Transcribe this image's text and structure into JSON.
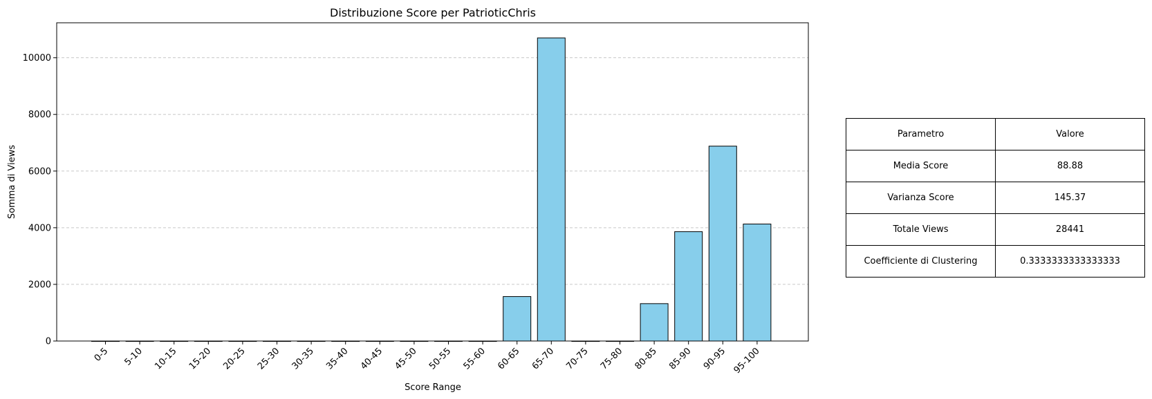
{
  "chart_data": {
    "type": "bar",
    "title": "Distribuzione Score per PatrioticChris",
    "xlabel": "Score Range",
    "ylabel": "Somma di Views",
    "categories": [
      "0-5",
      "5-10",
      "10-15",
      "15-20",
      "20-25",
      "25-30",
      "30-35",
      "35-40",
      "40-45",
      "45-50",
      "50-55",
      "55-60",
      "60-65",
      "65-70",
      "70-75",
      "75-80",
      "80-85",
      "85-90",
      "90-95",
      "95-100"
    ],
    "values": [
      0,
      0,
      0,
      0,
      0,
      0,
      0,
      0,
      0,
      0,
      0,
      0,
      1570,
      10700,
      0,
      0,
      1320,
      3860,
      6880,
      4130
    ],
    "ylim": [
      0,
      11235
    ],
    "yticks": [
      0,
      2000,
      4000,
      6000,
      8000,
      10000
    ],
    "grid": "y-dashed",
    "bar_color": "#87CEEB",
    "edge_color": "#000000"
  },
  "table": {
    "header": [
      "Parametro",
      "Valore"
    ],
    "rows": [
      [
        "Media Score",
        "88.88"
      ],
      [
        "Varianza Score",
        "145.37"
      ],
      [
        "Totale Views",
        "28441"
      ],
      [
        "Coefficiente di Clustering",
        "0.3333333333333333"
      ]
    ]
  }
}
